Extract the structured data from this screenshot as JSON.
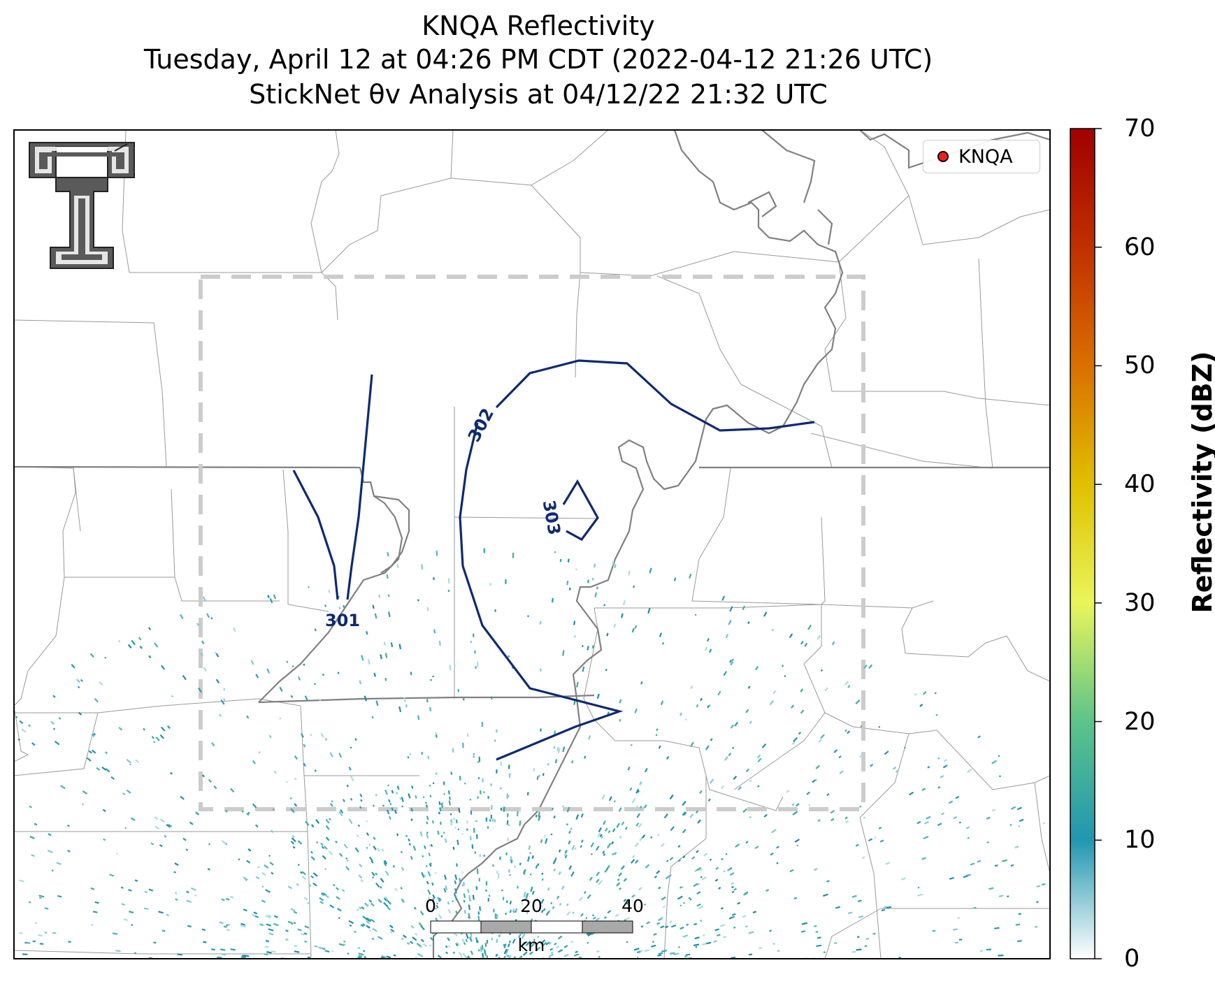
{
  "title": {
    "line1": "KNQA Reflectivity",
    "line2": "Tuesday, April 12 at 04:26 PM CDT (2022-04-12 21:26 UTC)",
    "line3": "StickNet θv Analysis at 04/12/22 21:32 UTC"
  },
  "legend": {
    "label": "KNQA",
    "marker_color": "#ff1a1a"
  },
  "colorbar": {
    "label": "Reflectivity (dBZ)",
    "ticks": [
      "0",
      "10",
      "20",
      "30",
      "40",
      "50",
      "60",
      "70"
    ],
    "range": [
      0,
      70
    ],
    "colors": [
      "#ffffff",
      "#2196b0",
      "#5cc48a",
      "#f2f25a",
      "#e0c000",
      "#d97000",
      "#c03000",
      "#a00000"
    ]
  },
  "contours": {
    "color": "#0d2a73",
    "labels": [
      "301",
      "302",
      "303"
    ]
  },
  "scale_bar": {
    "ticks": [
      "0",
      "20",
      "40"
    ],
    "unit": "km"
  },
  "analysis_domain_color": "#cccccc",
  "logo": {
    "name": "Texas Tech Double T"
  }
}
